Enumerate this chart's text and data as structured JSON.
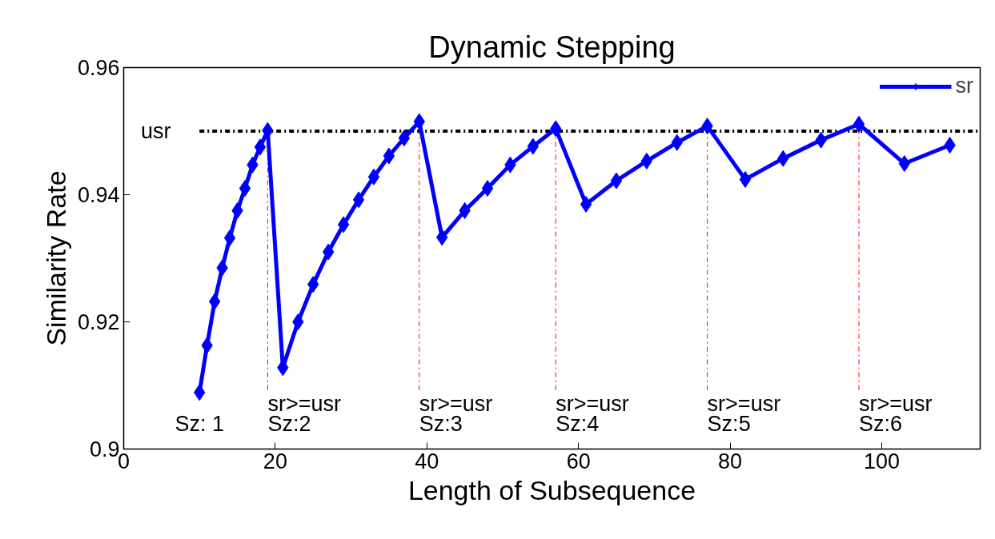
{
  "chart_data": {
    "type": "line",
    "title": "Dynamic Stepping",
    "xlabel": "Length of Subsequence",
    "ylabel": "Similarity Rate",
    "x": [
      10,
      11,
      12,
      13,
      14,
      15,
      16,
      17,
      18,
      19,
      21,
      23,
      25,
      27,
      29,
      31,
      33,
      35,
      37,
      39,
      42,
      45,
      48,
      51,
      54,
      57,
      61,
      65,
      69,
      73,
      77,
      82,
      87,
      92,
      97,
      103,
      109
    ],
    "series": [
      {
        "name": "sr",
        "color": "#0000ff",
        "values": [
          0.9089,
          0.9163,
          0.9232,
          0.9285,
          0.9332,
          0.9375,
          0.941,
          0.9447,
          0.9475,
          0.9501,
          0.9128,
          0.92,
          0.9259,
          0.931,
          0.9353,
          0.9392,
          0.9428,
          0.9461,
          0.9489,
          0.9515,
          0.9333,
          0.9375,
          0.941,
          0.9447,
          0.9476,
          0.9504,
          0.9385,
          0.9422,
          0.9453,
          0.9482,
          0.9508,
          0.9424,
          0.9457,
          0.9486,
          0.9511,
          0.9449,
          0.9478
        ]
      }
    ],
    "xlim": [
      0,
      113
    ],
    "ylim": [
      0.9,
      0.96
    ],
    "xticks": [
      0,
      20,
      40,
      60,
      80,
      100
    ],
    "yticks": [
      0.9,
      0.92,
      0.94,
      0.96
    ],
    "ref_lines": [
      {
        "axis": "y",
        "value": 0.95,
        "label": "usr",
        "color": "#000000",
        "line_style": "dashdot"
      },
      {
        "axis": "x",
        "value": 19,
        "label": "sr>=usr",
        "color": "#ff0000",
        "line_style": "dashdot"
      },
      {
        "axis": "x",
        "value": 39,
        "label": "sr>=usr",
        "color": "#ff0000",
        "line_style": "dashdot"
      },
      {
        "axis": "x",
        "value": 57,
        "label": "sr>=usr",
        "color": "#ff0000",
        "line_style": "dashdot"
      },
      {
        "axis": "x",
        "value": 77,
        "label": "sr>=usr",
        "color": "#ff0000",
        "line_style": "dashdot"
      },
      {
        "axis": "x",
        "value": 97,
        "label": "sr>=usr",
        "color": "#ff0000",
        "line_style": "dashdot"
      }
    ],
    "annotations": [
      "Sz: 1",
      "Sz:2",
      "Sz:3",
      "Sz:4",
      "Sz:5",
      "Sz:6"
    ],
    "legend": "top right",
    "grid": false,
    "marker": "diamond",
    "line_style": "solid"
  }
}
